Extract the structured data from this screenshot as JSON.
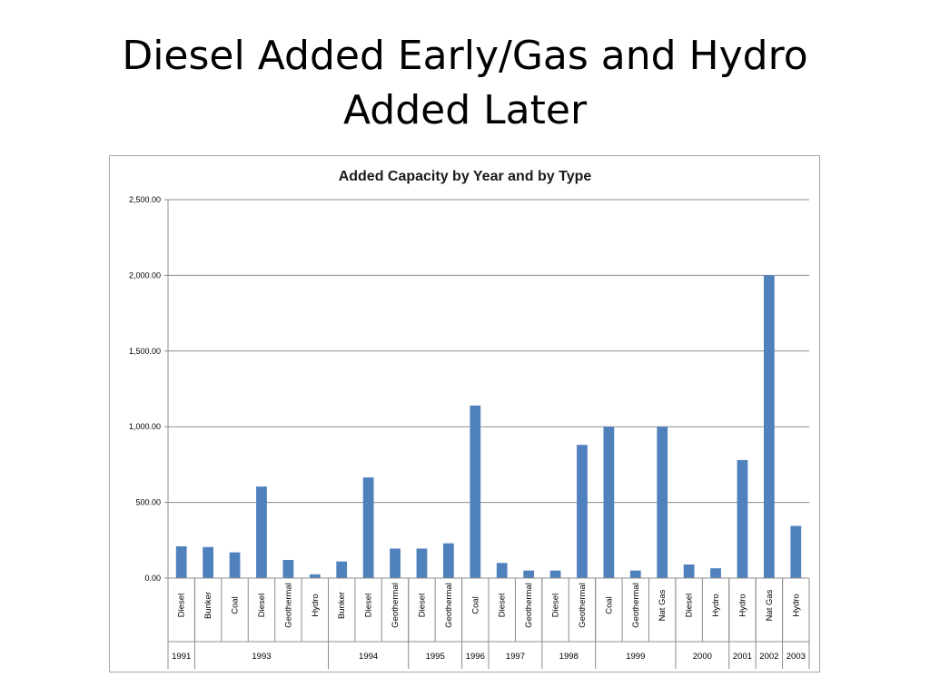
{
  "slide": {
    "title_line1": "Diesel Added Early/Gas and Hydro",
    "title_line2": "Added Later"
  },
  "chart_data": {
    "type": "bar",
    "title": "Added Capacity by Year and by Type",
    "xlabel": "",
    "ylabel": "",
    "ylim": [
      0,
      2500
    ],
    "y_ticks": [
      "0.00",
      "500.00",
      "1,000.00",
      "1,500.00",
      "2,000.00",
      "2,500.00"
    ],
    "y_tick_values": [
      0,
      500,
      1000,
      1500,
      2000,
      2500
    ],
    "grid": true,
    "legend": "none",
    "bar_color": "#4f81bd",
    "categories": [
      "Diesel",
      "Bunker",
      "Coal",
      "Diesel",
      "Geothermal",
      "Hydro",
      "Bunker",
      "Diesel",
      "Geothermal",
      "Diesel",
      "Geothermal",
      "Coal",
      "Diesel",
      "Geothermal",
      "Diesel",
      "Geothermal",
      "Coal",
      "Geothermal",
      "Nat Gas",
      "Diesel",
      "Hydro",
      "Hydro",
      "Nat Gas",
      "Hydro"
    ],
    "values": [
      210,
      205,
      170,
      605,
      120,
      25,
      110,
      665,
      195,
      195,
      230,
      1140,
      100,
      50,
      50,
      880,
      1000,
      50,
      1000,
      90,
      65,
      780,
      2000,
      345
    ],
    "year_groups": [
      {
        "label": "1991",
        "count": 1
      },
      {
        "label": "1993",
        "count": 5
      },
      {
        "label": "1994",
        "count": 3
      },
      {
        "label": "1995",
        "count": 2
      },
      {
        "label": "1996",
        "count": 1
      },
      {
        "label": "1997",
        "count": 2
      },
      {
        "label": "1998",
        "count": 2
      },
      {
        "label": "1999",
        "count": 3
      },
      {
        "label": "2000",
        "count": 2
      },
      {
        "label": "2001",
        "count": 1
      },
      {
        "label": "2002",
        "count": 1
      },
      {
        "label": "2003",
        "count": 1
      }
    ]
  }
}
